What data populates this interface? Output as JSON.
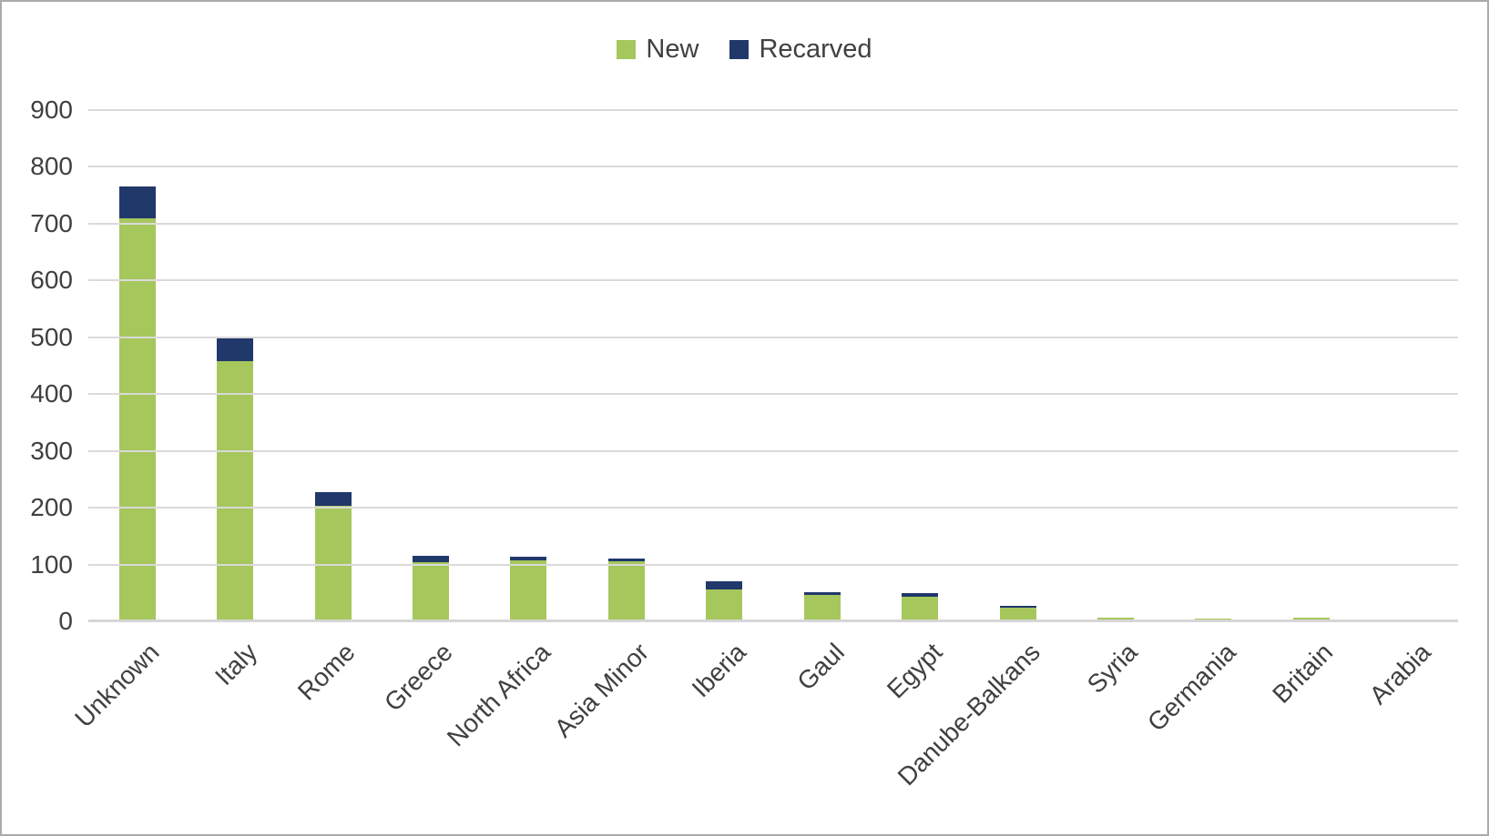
{
  "colors": {
    "new_series": "#a6c75c",
    "recarved_series": "#21386b",
    "text": "#404040",
    "gridline": "#dadada",
    "axis_line": "#d6d6d6",
    "border": "#ababab",
    "background": "#ffffff"
  },
  "legend": {
    "position": "top-center",
    "items": [
      {
        "label": "New",
        "color": "#a6c75c"
      },
      {
        "label": "Recarved",
        "color": "#21386b"
      }
    ]
  },
  "chart_data": {
    "type": "bar",
    "subtype": "stacked-column",
    "title": "",
    "xlabel": "",
    "ylabel": "",
    "categories": [
      "Unknown",
      "Italy",
      "Rome",
      "Greece",
      "North Africa",
      "Asia Minor",
      "Iberia",
      "Gaul",
      "Egypt",
      "Danube-Balkans",
      "Syria",
      "Germania",
      "Britain",
      "Arabia"
    ],
    "series": [
      {
        "name": "New",
        "color": "#a6c75c",
        "values": [
          710,
          458,
          203,
          104,
          108,
          106,
          56,
          46,
          43,
          24,
          7,
          5,
          6,
          2
        ]
      },
      {
        "name": "Recarved",
        "color": "#21386b",
        "values": [
          55,
          42,
          25,
          11,
          5,
          4,
          15,
          6,
          6,
          3,
          0,
          0,
          0,
          0
        ]
      }
    ],
    "ylim": [
      0,
      900
    ],
    "y_ticks": [
      900,
      800,
      700,
      600,
      500,
      400,
      300,
      200,
      100,
      0
    ],
    "grid": "horizontal",
    "legend_position": "top-center",
    "x_tick_rotation_deg": 45
  }
}
